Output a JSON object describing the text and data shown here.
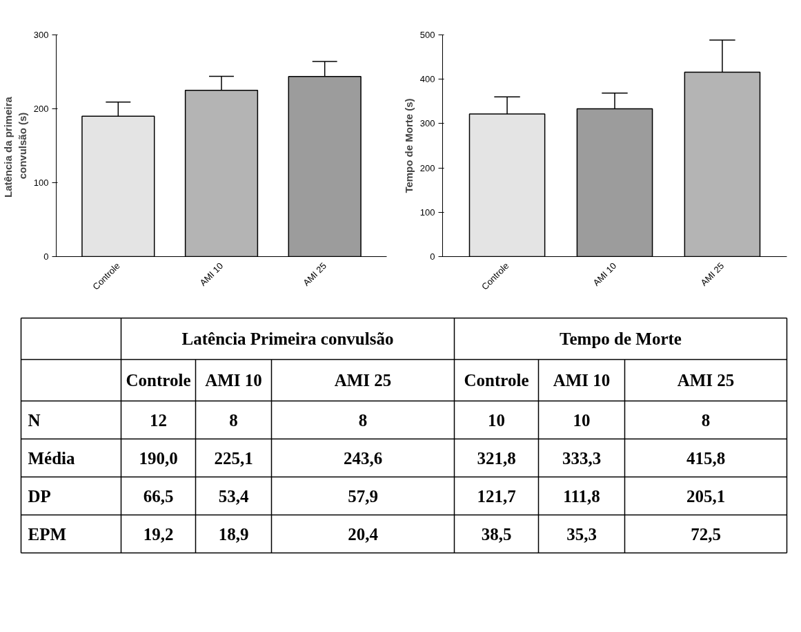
{
  "chart_data": [
    {
      "type": "bar",
      "ylabel": "Latência da  primeira\nconvulsão (s)",
      "categories": [
        "Controle",
        "AMI 10",
        "AMI 25"
      ],
      "values": [
        190.0,
        225.1,
        243.6
      ],
      "errors": [
        19.2,
        18.9,
        20.4
      ],
      "colors": [
        "#e4e4e4",
        "#b4b4b4",
        "#9c9c9c"
      ],
      "ylim": [
        0,
        300
      ],
      "yticks": [
        0,
        100,
        200,
        300
      ],
      "grid": false
    },
    {
      "type": "bar",
      "ylabel": "Tempo de Morte (s)",
      "categories": [
        "Controle",
        "AMI 10",
        "AMI 25"
      ],
      "values": [
        321.8,
        333.3,
        415.8
      ],
      "errors": [
        38.5,
        35.3,
        72.5
      ],
      "colors": [
        "#e4e4e4",
        "#9c9c9c",
        "#b4b4b4"
      ],
      "ylim": [
        0,
        500
      ],
      "yticks": [
        0,
        100,
        200,
        300,
        400,
        500
      ],
      "grid": false
    },
    {
      "type": "other",
      "annotations": [
        "Latência Primeira convulsão",
        "Tempo de Morte",
        "Controle",
        "AMI 10",
        "AMI 25",
        "Controle",
        "AMI 10",
        "AMI 25",
        "N",
        "12",
        "8",
        "8",
        "10",
        "10",
        "8",
        "Média",
        "190,0",
        "225,1",
        "243,6",
        "321,8",
        "333,3",
        "415,8",
        "DP",
        "66,5",
        "53,4",
        "57,9",
        "121,7",
        "111,8",
        "205,1",
        "EPM",
        "19,2",
        "18,9",
        "20,4",
        "38,5",
        "35,3",
        "72,5"
      ]
    }
  ]
}
